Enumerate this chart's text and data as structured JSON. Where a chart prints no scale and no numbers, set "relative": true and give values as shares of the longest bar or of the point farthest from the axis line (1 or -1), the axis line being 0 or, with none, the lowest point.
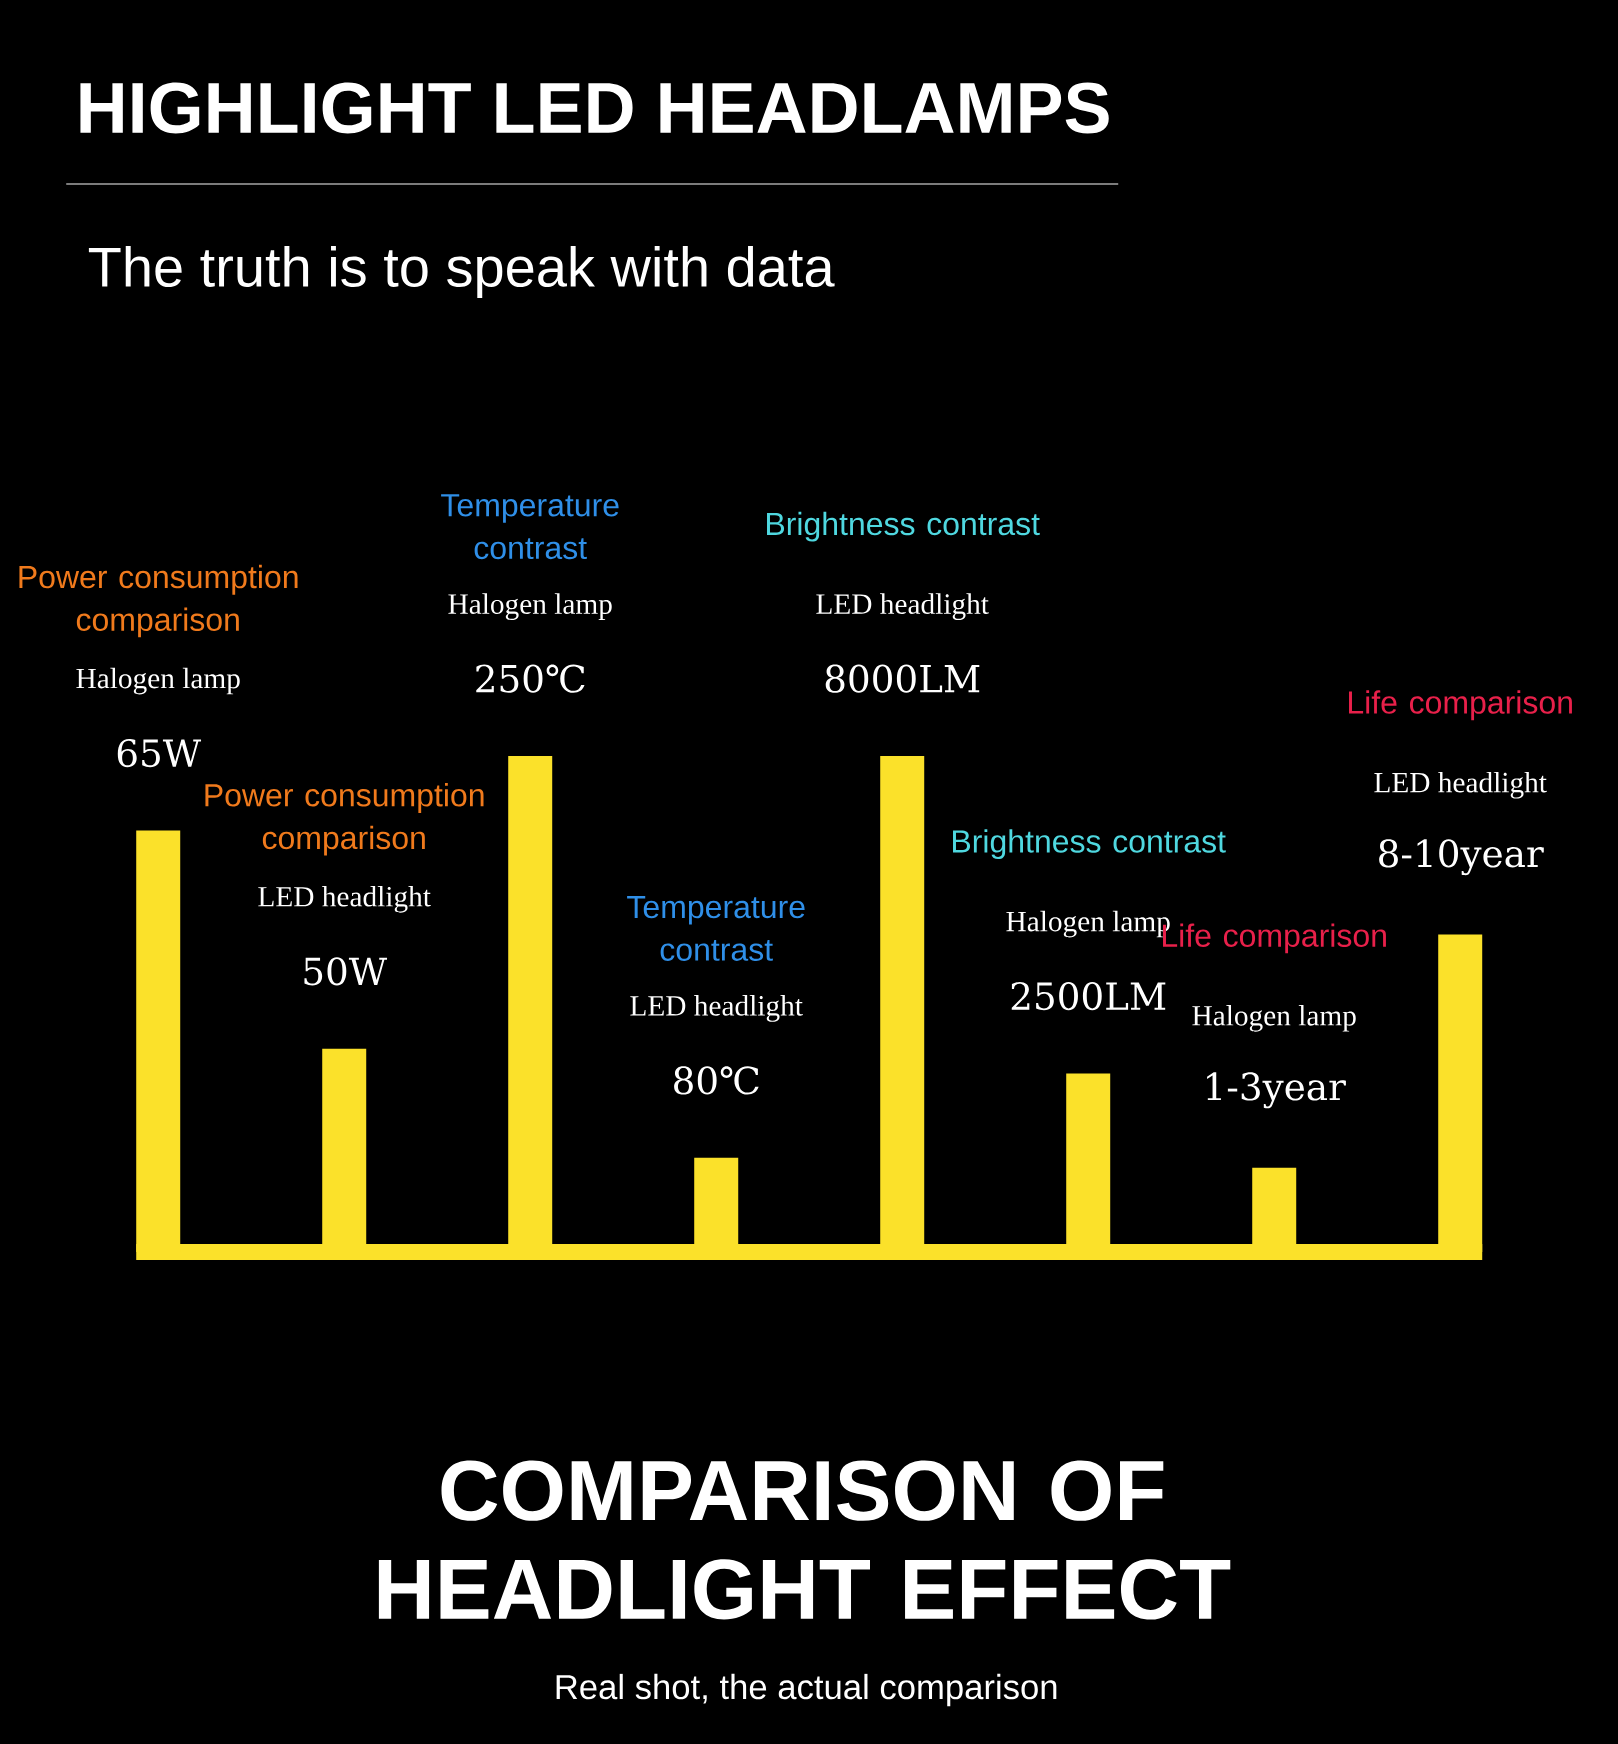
{
  "chart_data": {
    "type": "bar",
    "relative": true,
    "title": "HIGHLIGHT LED HEADLAMPS",
    "subtitle": "The truth is to speak with data",
    "categories": [
      null,
      null,
      null,
      null,
      null,
      null,
      null,
      null
    ],
    "values": [
      0.85,
      0.41,
      1,
      0.19,
      1,
      0.36,
      0.17,
      0.64
    ],
    "color": "#fbe12a",
    "ref_lines": [
      {
        "axis": "y",
        "value": 0,
        "color": "#fbe12a"
      }
    ],
    "annotations": [
      "Power consumption comparison",
      "Halogen lamp",
      "65W",
      "Power consumption comparison",
      "LED headlight",
      "50W",
      "Temperature contrast",
      "Halogen lamp",
      "250℃",
      "Temperature contrast",
      "LED headlight",
      "80℃",
      "Brightness contrast",
      "LED headlight",
      "8000LM",
      "Brightness contrast",
      "Halogen lamp",
      "2500LM",
      "Life comparison",
      "Halogen lamp",
      "1-3year",
      "Life comparison",
      "LED headlight",
      "8-10year",
      "COMPARISON OF HEADLIGHT EFFECT",
      "Real shot, the actual comparison"
    ]
  }
}
